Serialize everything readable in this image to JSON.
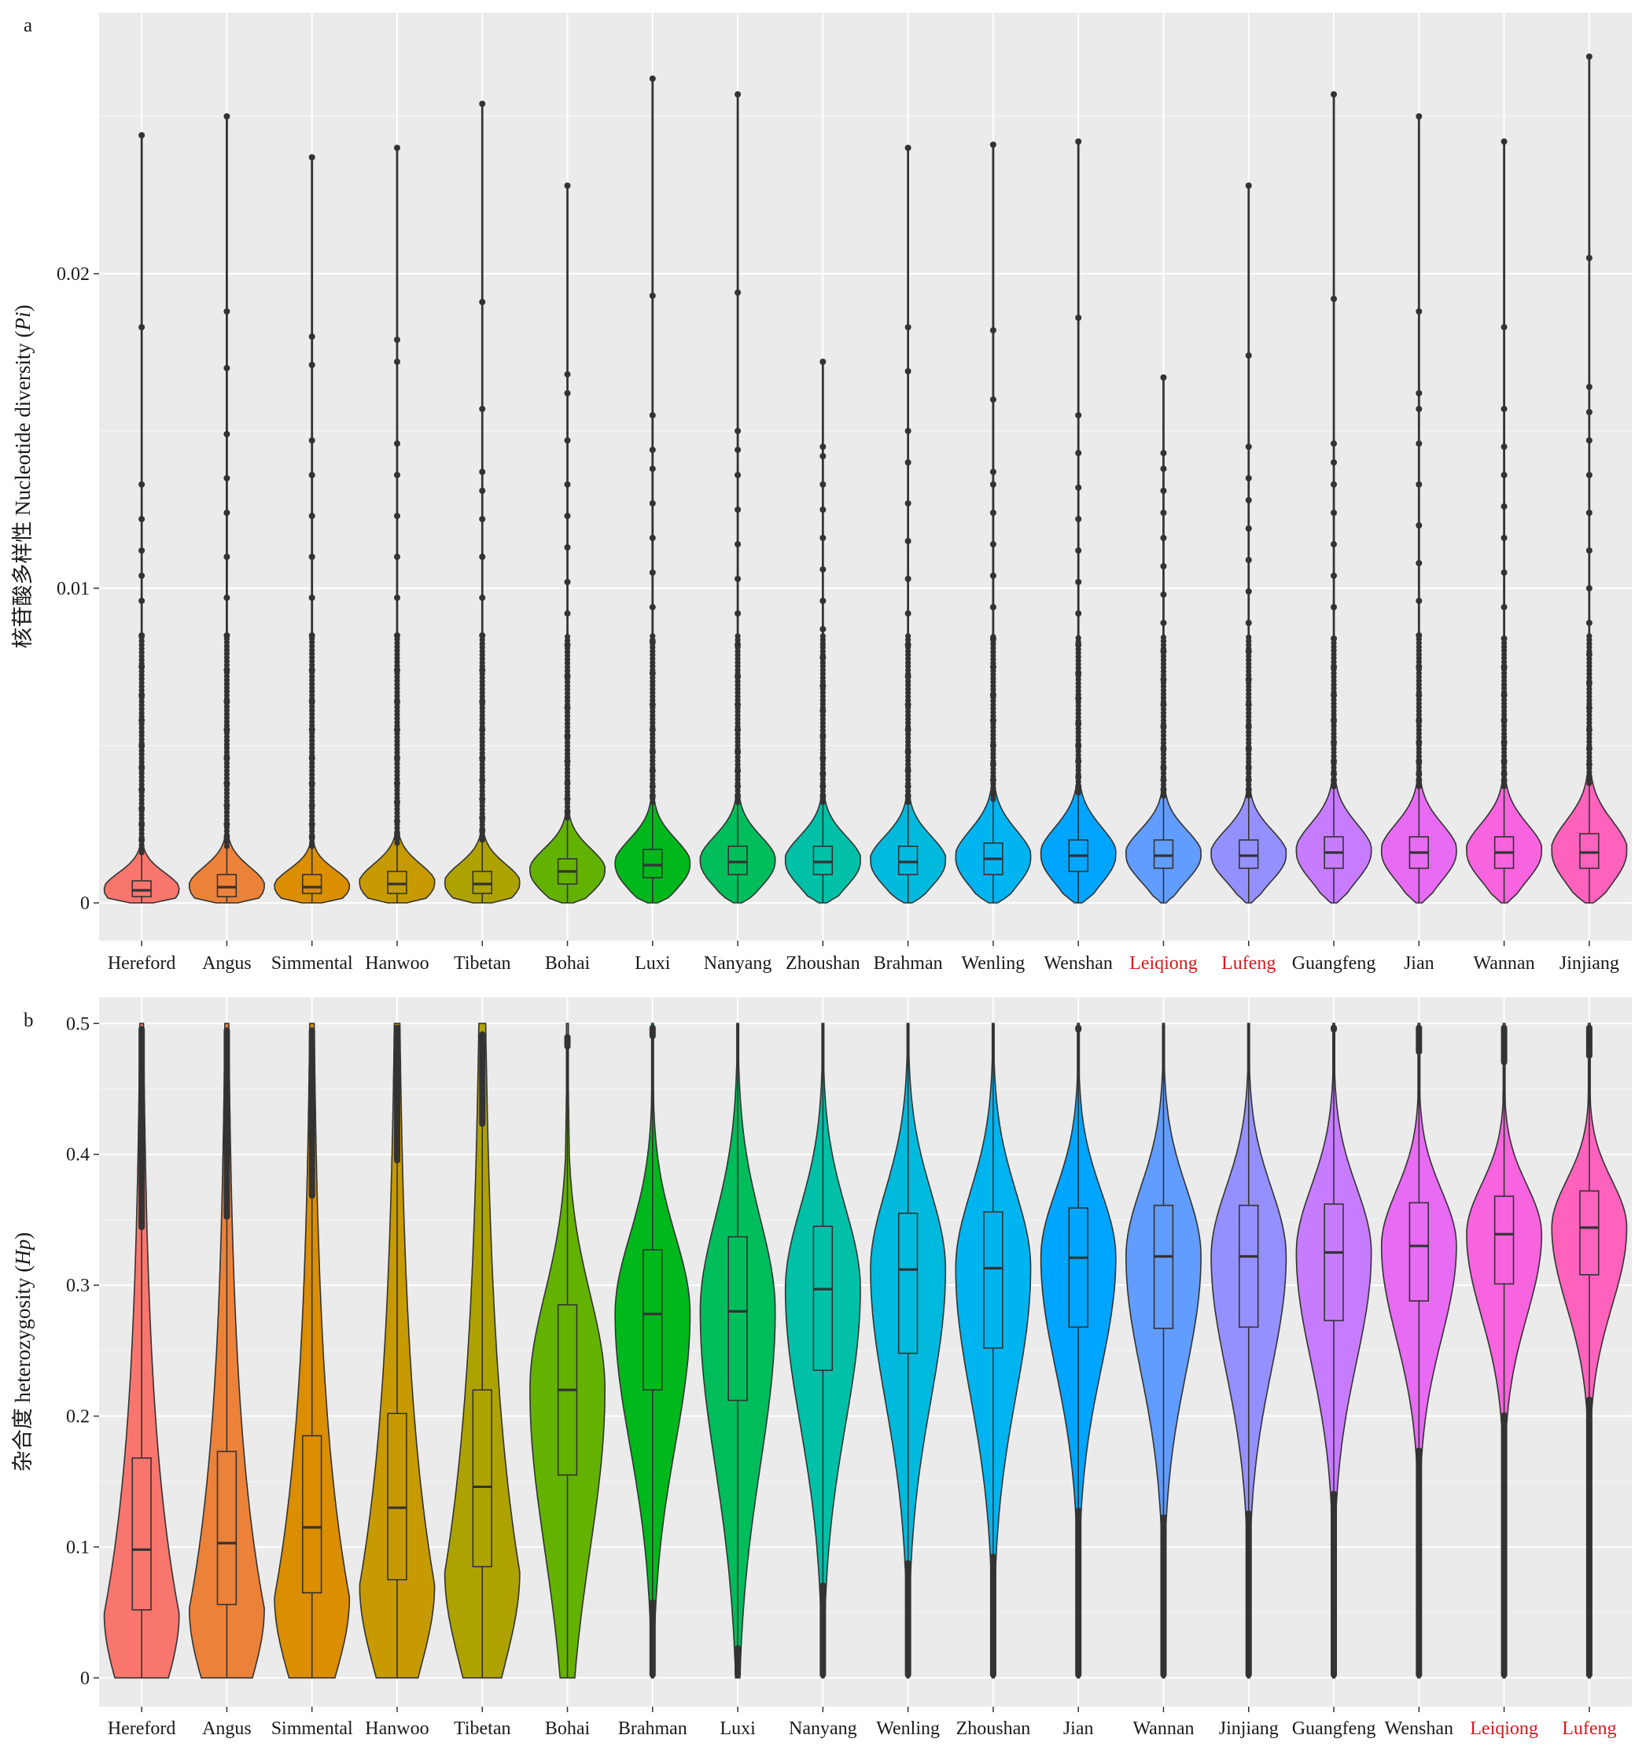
{
  "chart_data": [
    {
      "type": "violin",
      "panel_label": "a",
      "ylabel": "核苷酸多样性 Nucleotide diversity (Pi)",
      "ylabel_parts": {
        "cn": "核苷酸多样性 Nucleotide diversity (",
        "it": "Pi",
        "end": ")"
      },
      "ylim": [
        -0.0012,
        0.0283
      ],
      "yticks": [
        0,
        0.01,
        0.02
      ],
      "ytick_labels": [
        "0",
        "0.01",
        "0.02"
      ],
      "grid": true,
      "overlay": "boxplot",
      "categories": [
        "Hereford",
        "Angus",
        "Simmental",
        "Hanwoo",
        "Tibetan",
        "Bohai",
        "Luxi",
        "Nanyang",
        "Zhoushan",
        "Brahman",
        "Wenling",
        "Wenshan",
        "Leiqiong",
        "Lufeng",
        "Guangfeng",
        "Jian",
        "Wannan",
        "Jinjiang"
      ],
      "highlighted_categories": [
        "Leiqiong",
        "Lufeng"
      ],
      "colors": [
        "#F8766D",
        "#EC8239",
        "#DB8E00",
        "#C69A00",
        "#AEA200",
        "#64B200",
        "#00B81B",
        "#00BD5C",
        "#00C1A7",
        "#00BADE",
        "#00B4F0",
        "#00A5FF",
        "#619CFF",
        "#9590FF",
        "#C77CFF",
        "#E76BF3",
        "#F863DF",
        "#FF62BC"
      ],
      "series": [
        {
          "name": "Hereford",
          "q1": 0.0002,
          "median": 0.0004,
          "q3": 0.0007,
          "whisker_high": 0.0016,
          "max": 0.0244,
          "outliers": [
            0.0183,
            0.0133,
            0.0122,
            0.0112,
            0.0104,
            0.0096,
            0.0085,
            0.0075,
            0.0066,
            0.0058,
            0.005,
            0.0043,
            0.0036,
            0.003,
            0.0025,
            0.002
          ]
        },
        {
          "name": "Angus",
          "q1": 0.0002,
          "median": 0.0005,
          "q3": 0.0009,
          "whisker_high": 0.0018,
          "max": 0.025,
          "outliers": [
            0.0188,
            0.017,
            0.0149,
            0.0135,
            0.0124,
            0.011,
            0.0097,
            0.0085,
            0.0074,
            0.0064,
            0.0055,
            0.0046,
            0.0038,
            0.0031,
            0.0025,
            0.0021
          ]
        },
        {
          "name": "Simmental",
          "q1": 0.0003,
          "median": 0.0005,
          "q3": 0.0009,
          "whisker_high": 0.0018,
          "max": 0.0237,
          "outliers": [
            0.018,
            0.0171,
            0.0147,
            0.0136,
            0.0123,
            0.011,
            0.0097,
            0.0085,
            0.0074,
            0.0064,
            0.0055,
            0.0046,
            0.0038,
            0.0031,
            0.0025,
            0.0021
          ]
        },
        {
          "name": "Hanwoo",
          "q1": 0.0003,
          "median": 0.0006,
          "q3": 0.001,
          "whisker_high": 0.0019,
          "max": 0.024,
          "outliers": [
            0.0179,
            0.0172,
            0.0146,
            0.0136,
            0.0123,
            0.011,
            0.0097,
            0.0085,
            0.0074,
            0.0064,
            0.0055,
            0.0046,
            0.0038,
            0.0032,
            0.0026,
            0.0022
          ]
        },
        {
          "name": "Tibetan",
          "q1": 0.0003,
          "median": 0.0006,
          "q3": 0.001,
          "whisker_high": 0.002,
          "max": 0.0254,
          "outliers": [
            0.0191,
            0.0157,
            0.0137,
            0.0131,
            0.0122,
            0.011,
            0.0097,
            0.0085,
            0.0074,
            0.0064,
            0.0055,
            0.0046,
            0.0039,
            0.0033,
            0.0027,
            0.0023
          ]
        },
        {
          "name": "Bohai",
          "q1": 0.0006,
          "median": 0.001,
          "q3": 0.0014,
          "whisker_high": 0.0027,
          "max": 0.0228,
          "outliers": [
            0.0168,
            0.0162,
            0.0147,
            0.0133,
            0.0123,
            0.0113,
            0.0102,
            0.0092,
            0.0082,
            0.0072,
            0.0062,
            0.0053,
            0.0045,
            0.0038,
            0.0033,
            0.0029
          ]
        },
        {
          "name": "Luxi",
          "q1": 0.0008,
          "median": 0.0012,
          "q3": 0.0017,
          "whisker_high": 0.0032,
          "max": 0.0262,
          "outliers": [
            0.0193,
            0.0155,
            0.0144,
            0.0138,
            0.0127,
            0.0116,
            0.0105,
            0.0094,
            0.0083,
            0.0073,
            0.0063,
            0.0055,
            0.0048,
            0.0042,
            0.0037,
            0.0034
          ]
        },
        {
          "name": "Nanyang",
          "q1": 0.0009,
          "median": 0.0013,
          "q3": 0.0018,
          "whisker_high": 0.0032,
          "max": 0.0257,
          "outliers": [
            0.0194,
            0.015,
            0.0144,
            0.0136,
            0.0125,
            0.0114,
            0.0103,
            0.0092,
            0.0082,
            0.0072,
            0.0063,
            0.0055,
            0.0048,
            0.0042,
            0.0037,
            0.0034
          ]
        },
        {
          "name": "Zhoushan",
          "q1": 0.0009,
          "median": 0.0013,
          "q3": 0.0018,
          "whisker_high": 0.0032,
          "max": 0.0172,
          "outliers": [
            0.0145,
            0.0142,
            0.0133,
            0.0125,
            0.0116,
            0.0106,
            0.0096,
            0.0087,
            0.0078,
            0.0069,
            0.0061,
            0.0053,
            0.0046,
            0.0041,
            0.0037,
            0.0034
          ]
        },
        {
          "name": "Brahman",
          "q1": 0.0009,
          "median": 0.0013,
          "q3": 0.0018,
          "whisker_high": 0.0032,
          "max": 0.024,
          "outliers": [
            0.0183,
            0.0169,
            0.015,
            0.014,
            0.0127,
            0.0115,
            0.0103,
            0.0092,
            0.0082,
            0.0072,
            0.0063,
            0.0055,
            0.0048,
            0.0042,
            0.0037,
            0.0034
          ]
        },
        {
          "name": "Wenling",
          "q1": 0.0009,
          "median": 0.0014,
          "q3": 0.0019,
          "whisker_high": 0.0033,
          "max": 0.0241,
          "outliers": [
            0.0182,
            0.016,
            0.0137,
            0.0133,
            0.0124,
            0.0114,
            0.0104,
            0.0094,
            0.0084,
            0.0075,
            0.0066,
            0.0058,
            0.005,
            0.0044,
            0.0039,
            0.0035
          ]
        },
        {
          "name": "Wenshan",
          "q1": 0.001,
          "median": 0.0015,
          "q3": 0.002,
          "whisker_high": 0.0035,
          "max": 0.0242,
          "outliers": [
            0.0186,
            0.0155,
            0.0143,
            0.0132,
            0.0122,
            0.0112,
            0.0102,
            0.0092,
            0.0082,
            0.0073,
            0.0065,
            0.0057,
            0.005,
            0.0045,
            0.004,
            0.0037
          ]
        },
        {
          "name": "Leiqiong",
          "q1": 0.0011,
          "median": 0.0015,
          "q3": 0.002,
          "whisker_high": 0.0034,
          "max": 0.0167,
          "outliers": [
            0.0143,
            0.0138,
            0.0131,
            0.0124,
            0.0116,
            0.0107,
            0.0098,
            0.0089,
            0.008,
            0.0071,
            0.0063,
            0.0056,
            0.0049,
            0.0043,
            0.0039,
            0.0036
          ]
        },
        {
          "name": "Lufeng",
          "q1": 0.0011,
          "median": 0.0015,
          "q3": 0.002,
          "whisker_high": 0.0034,
          "max": 0.0228,
          "outliers": [
            0.0174,
            0.0145,
            0.0135,
            0.0128,
            0.0119,
            0.0109,
            0.0099,
            0.0089,
            0.008,
            0.0071,
            0.0063,
            0.0056,
            0.0049,
            0.0043,
            0.0039,
            0.0036
          ]
        },
        {
          "name": "Guangfeng",
          "q1": 0.0011,
          "median": 0.0016,
          "q3": 0.0021,
          "whisker_high": 0.0037,
          "max": 0.0257,
          "outliers": [
            0.0192,
            0.0146,
            0.014,
            0.0133,
            0.0124,
            0.0114,
            0.0104,
            0.0094,
            0.0084,
            0.0075,
            0.0066,
            0.0058,
            0.0051,
            0.0045,
            0.0041,
            0.0039
          ]
        },
        {
          "name": "Jian",
          "q1": 0.0011,
          "median": 0.0016,
          "q3": 0.0021,
          "whisker_high": 0.0037,
          "max": 0.025,
          "outliers": [
            0.0188,
            0.0162,
            0.0157,
            0.0146,
            0.0133,
            0.012,
            0.0108,
            0.0096,
            0.0085,
            0.0075,
            0.0066,
            0.0058,
            0.0051,
            0.0045,
            0.0041,
            0.0039
          ]
        },
        {
          "name": "Wannan",
          "q1": 0.0011,
          "median": 0.0016,
          "q3": 0.0021,
          "whisker_high": 0.0037,
          "max": 0.0242,
          "outliers": [
            0.0183,
            0.0157,
            0.0145,
            0.0136,
            0.0126,
            0.0116,
            0.0105,
            0.0094,
            0.0084,
            0.0075,
            0.0066,
            0.0058,
            0.0051,
            0.0045,
            0.0041,
            0.0039
          ]
        },
        {
          "name": "Jinjiang",
          "q1": 0.0011,
          "median": 0.0016,
          "q3": 0.0022,
          "whisker_high": 0.0038,
          "max": 0.0269,
          "outliers": [
            0.0205,
            0.0164,
            0.0156,
            0.0147,
            0.0136,
            0.0124,
            0.0112,
            0.01,
            0.0089,
            0.0079,
            0.007,
            0.0062,
            0.0055,
            0.0049,
            0.0044,
            0.004
          ]
        }
      ]
    },
    {
      "type": "violin",
      "panel_label": "b",
      "ylabel": "杂合度 heterozygosity (Hp)",
      "ylabel_parts": {
        "cn": "杂合度 heterozygosity (",
        "it": "Hp",
        "end": ")"
      },
      "ylim": [
        -0.022,
        0.52
      ],
      "yticks": [
        0,
        0.1,
        0.2,
        0.3,
        0.4,
        0.5
      ],
      "ytick_labels": [
        "0",
        "0.1",
        "0.2",
        "0.3",
        "0.4",
        "0.5"
      ],
      "grid": true,
      "overlay": "boxplot",
      "categories": [
        "Hereford",
        "Angus",
        "Simmental",
        "Hanwoo",
        "Tibetan",
        "Bohai",
        "Brahman",
        "Luxi",
        "Nanyang",
        "Wenling",
        "Zhoushan",
        "Jian",
        "Wannan",
        "Jinjiang",
        "Guangfeng",
        "Wenshan",
        "Leiqiong",
        "Lufeng"
      ],
      "highlighted_categories": [
        "Leiqiong",
        "Lufeng"
      ],
      "colors": [
        "#F8766D",
        "#EC8239",
        "#DB8E00",
        "#C69A00",
        "#AEA200",
        "#64B200",
        "#00B81B",
        "#00BD5C",
        "#00C1A7",
        "#00BADE",
        "#00B4F0",
        "#00A5FF",
        "#619CFF",
        "#9590FF",
        "#C77CFF",
        "#E76BF3",
        "#F863DF",
        "#FF62BC"
      ],
      "series": [
        {
          "name": "Hereford",
          "q1": 0.052,
          "median": 0.098,
          "q3": 0.168,
          "whisker_low": 0.0,
          "whisker_high": 0.342,
          "outlier_range_high": [
            0.342,
            0.498
          ]
        },
        {
          "name": "Angus",
          "q1": 0.056,
          "median": 0.103,
          "q3": 0.173,
          "whisker_low": 0.0,
          "whisker_high": 0.35,
          "outlier_range_high": [
            0.35,
            0.497
          ]
        },
        {
          "name": "Simmental",
          "q1": 0.065,
          "median": 0.115,
          "q3": 0.185,
          "whisker_low": 0.0,
          "whisker_high": 0.366,
          "outlier_range_high": [
            0.366,
            0.497
          ]
        },
        {
          "name": "Hanwoo",
          "q1": 0.075,
          "median": 0.13,
          "q3": 0.202,
          "whisker_low": 0.0,
          "whisker_high": 0.393,
          "outlier_range_high": [
            0.393,
            0.499
          ]
        },
        {
          "name": "Tibetan",
          "q1": 0.085,
          "median": 0.146,
          "q3": 0.22,
          "whisker_low": 0.0,
          "whisker_high": 0.421,
          "outlier_range_high": [
            0.421,
            0.494
          ]
        },
        {
          "name": "Bohai",
          "q1": 0.155,
          "median": 0.22,
          "q3": 0.285,
          "whisker_low": 0.0,
          "whisker_high": 0.48,
          "outlier_range_high": [
            0.48,
            0.492
          ]
        },
        {
          "name": "Brahman",
          "q1": 0.22,
          "median": 0.278,
          "q3": 0.327,
          "whisker_low": 0.06,
          "whisker_high": 0.488,
          "outlier_range_low": [
            0.0,
            0.06
          ],
          "outlier_range_high": [
            0.488,
            0.499
          ]
        },
        {
          "name": "Luxi",
          "q1": 0.212,
          "median": 0.28,
          "q3": 0.337,
          "whisker_low": 0.025,
          "whisker_high": 0.5,
          "outlier_range_low": [
            0.0,
            0.025
          ]
        },
        {
          "name": "Nanyang",
          "q1": 0.235,
          "median": 0.297,
          "q3": 0.345,
          "whisker_low": 0.073,
          "whisker_high": 0.5,
          "outlier_range_low": [
            0.0,
            0.073
          ]
        },
        {
          "name": "Wenling",
          "q1": 0.248,
          "median": 0.312,
          "q3": 0.355,
          "whisker_low": 0.09,
          "whisker_high": 0.5,
          "outlier_range_low": [
            0.0,
            0.09
          ]
        },
        {
          "name": "Zhoushan",
          "q1": 0.252,
          "median": 0.313,
          "q3": 0.356,
          "whisker_low": 0.095,
          "whisker_high": 0.5,
          "outlier_range_low": [
            0.0,
            0.095
          ]
        },
        {
          "name": "Jian",
          "q1": 0.268,
          "median": 0.321,
          "q3": 0.359,
          "whisker_low": 0.13,
          "whisker_high": 0.493,
          "outlier_range_low": [
            0.0,
            0.13
          ],
          "outlier_range_high": [
            0.493,
            0.499
          ]
        },
        {
          "name": "Wannan",
          "q1": 0.267,
          "median": 0.322,
          "q3": 0.361,
          "whisker_low": 0.125,
          "whisker_high": 0.499,
          "outlier_range_low": [
            0.0,
            0.125
          ]
        },
        {
          "name": "Jinjiang",
          "q1": 0.268,
          "median": 0.322,
          "q3": 0.361,
          "whisker_low": 0.128,
          "whisker_high": 0.5,
          "outlier_range_low": [
            0.0,
            0.128
          ]
        },
        {
          "name": "Guangfeng",
          "q1": 0.273,
          "median": 0.325,
          "q3": 0.362,
          "whisker_low": 0.143,
          "whisker_high": 0.493,
          "outlier_range_low": [
            0.0,
            0.143
          ],
          "outlier_range_high": [
            0.493,
            0.499
          ]
        },
        {
          "name": "Wenshan",
          "q1": 0.288,
          "median": 0.33,
          "q3": 0.363,
          "whisker_low": 0.176,
          "whisker_high": 0.476,
          "outlier_range_low": [
            0.0,
            0.176
          ],
          "outlier_range_high": [
            0.476,
            0.499
          ]
        },
        {
          "name": "Leiqiong",
          "q1": 0.301,
          "median": 0.339,
          "q3": 0.368,
          "whisker_low": 0.203,
          "whisker_high": 0.468,
          "outlier_range_low": [
            0.0,
            0.203
          ],
          "outlier_range_high": [
            0.468,
            0.499
          ]
        },
        {
          "name": "Lufeng",
          "q1": 0.308,
          "median": 0.344,
          "q3": 0.372,
          "whisker_low": 0.215,
          "whisker_high": 0.473,
          "outlier_range_low": [
            0.0,
            0.215
          ],
          "outlier_range_high": [
            0.473,
            0.499
          ]
        }
      ]
    }
  ]
}
